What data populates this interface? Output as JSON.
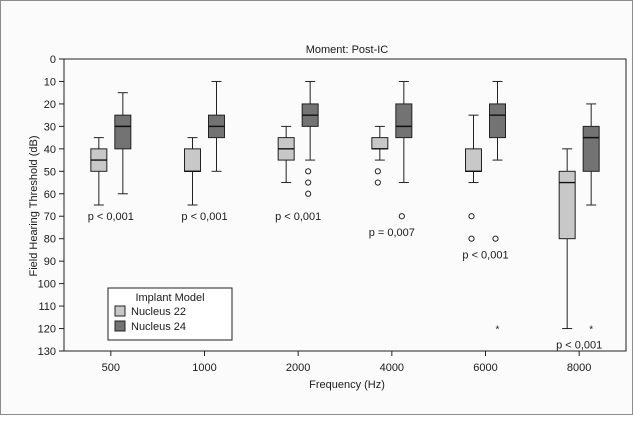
{
  "chart_data": {
    "type": "boxplot",
    "title": "Moment: Post-IC",
    "xlabel": "Frequency (Hz)",
    "ylabel": "Field Hearing Threshold (dB)",
    "y_reversed": true,
    "ylim": [
      0,
      130
    ],
    "yticks": [
      "0",
      "10",
      "20",
      "30",
      "40",
      "50",
      "60",
      "70",
      "80",
      "90",
      "100",
      "110",
      "120",
      "130"
    ],
    "categories": [
      "500",
      "1000",
      "2000",
      "4000",
      "6000",
      "8000"
    ],
    "legend": {
      "title": "Implant Model",
      "placement": "bottom-left"
    },
    "series": [
      {
        "name": "Nucleus 22",
        "color": "#c8c8c8",
        "boxes": [
          {
            "min": 35,
            "q1": 40,
            "median": 45,
            "q3": 50,
            "max": 65,
            "outliers": [],
            "extremes": []
          },
          {
            "min": 35,
            "q1": 40,
            "median": 50,
            "q3": 50,
            "max": 65,
            "outliers": [],
            "extremes": []
          },
          {
            "min": 30,
            "q1": 35,
            "median": 40,
            "q3": 45,
            "max": 55,
            "outliers": [],
            "extremes": []
          },
          {
            "min": 30,
            "q1": 35,
            "median": 40,
            "q3": 40,
            "max": 45,
            "outliers": [
              50,
              55
            ],
            "extremes": []
          },
          {
            "min": 25,
            "q1": 40,
            "median": 50,
            "q3": 50,
            "max": 55,
            "outliers": [
              70,
              80
            ],
            "extremes": []
          },
          {
            "min": 40,
            "q1": 50,
            "median": 55,
            "q3": 80,
            "max": 120,
            "outliers": [],
            "extremes": []
          }
        ]
      },
      {
        "name": "Nucleus 24",
        "color": "#737373",
        "boxes": [
          {
            "min": 15,
            "q1": 25,
            "median": 30,
            "q3": 40,
            "max": 60,
            "outliers": [],
            "extremes": []
          },
          {
            "min": 10,
            "q1": 25,
            "median": 30,
            "q3": 35,
            "max": 50,
            "outliers": [],
            "extremes": []
          },
          {
            "min": 10,
            "q1": 20,
            "median": 25,
            "q3": 30,
            "max": 45,
            "outliers": [
              50,
              55,
              60
            ],
            "extremes": []
          },
          {
            "min": 10,
            "q1": 20,
            "median": 30,
            "q3": 35,
            "max": 55,
            "outliers": [
              70
            ],
            "extremes": []
          },
          {
            "min": 10,
            "q1": 20,
            "median": 25,
            "q3": 35,
            "max": 45,
            "outliers": [
              80
            ],
            "extremes": [
              120
            ]
          },
          {
            "min": 20,
            "q1": 30,
            "median": 35,
            "q3": 50,
            "max": 65,
            "outliers": [],
            "extremes": [
              120
            ]
          }
        ]
      }
    ],
    "annotations": [
      {
        "category": "500",
        "text": "p < 0,001",
        "y": 70
      },
      {
        "category": "1000",
        "text": "p < 0,001",
        "y": 70
      },
      {
        "category": "2000",
        "text": "p < 0,001",
        "y": 70
      },
      {
        "category": "4000",
        "text": "p = 0,007",
        "y": 77
      },
      {
        "category": "6000",
        "text": "p < 0,001",
        "y": 87
      },
      {
        "category": "8000",
        "text": "p < 0,001",
        "y": 127
      }
    ]
  }
}
